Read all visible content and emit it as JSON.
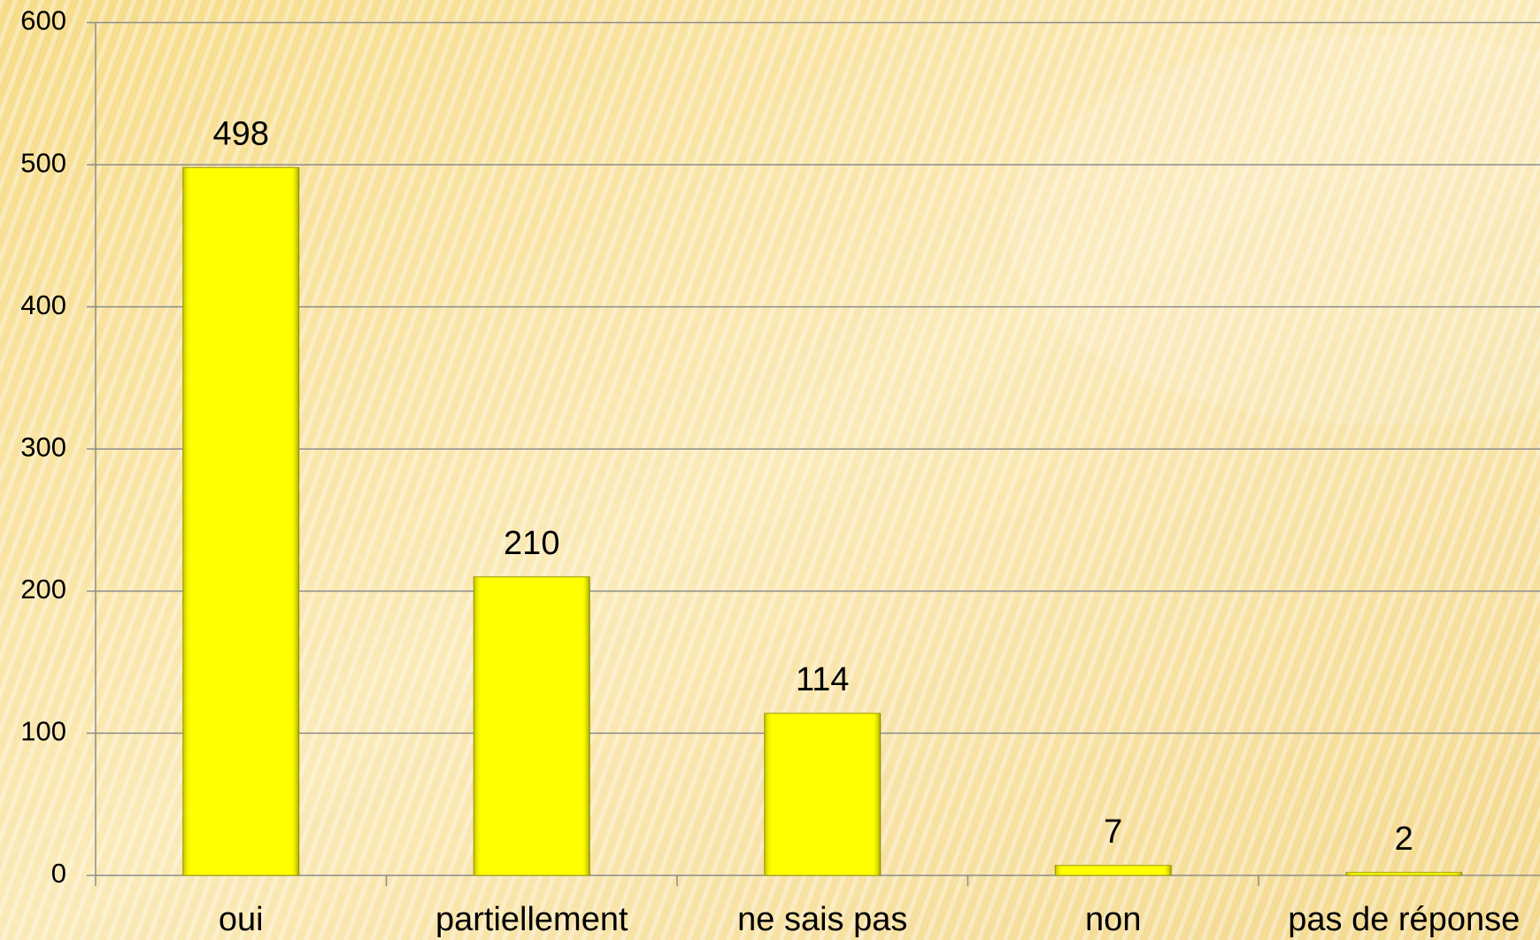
{
  "chart_data": {
    "type": "bar",
    "categories": [
      "oui",
      "partiellement",
      "ne sais pas",
      "non",
      "pas de réponse"
    ],
    "values": [
      498,
      210,
      114,
      7,
      2
    ],
    "color": "#ffff00",
    "ylim": [
      0,
      600
    ],
    "yticks": [
      0,
      100,
      200,
      300,
      400,
      500,
      600
    ],
    "grid": true
  }
}
